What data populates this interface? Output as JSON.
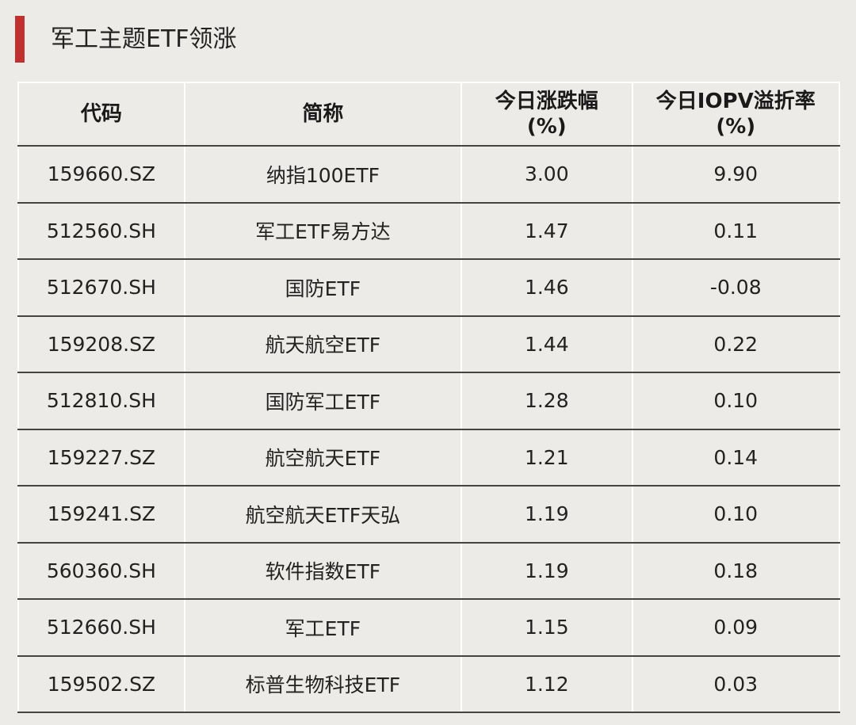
{
  "title": "军工主题ETF领涨",
  "accent_color": "#c0302f",
  "table": {
    "headers": [
      "代码",
      "简称",
      "今日涨跌幅\n(%)",
      "今日IOPV溢折率\n(%)"
    ],
    "header_lines": [
      [
        "代码"
      ],
      [
        "简称"
      ],
      [
        "今日涨跌幅",
        "(%)"
      ],
      [
        "今日IOPV溢折率",
        "(%)"
      ]
    ],
    "rows": [
      [
        "159660.SZ",
        "纳指100ETF",
        "3.00",
        "9.90"
      ],
      [
        "512560.SH",
        "军工ETF易方达",
        "1.47",
        "0.11"
      ],
      [
        "512670.SH",
        "国防ETF",
        "1.46",
        "-0.08"
      ],
      [
        "159208.SZ",
        "航天航空ETF",
        "1.44",
        "0.22"
      ],
      [
        "512810.SH",
        "国防军工ETF",
        "1.28",
        "0.10"
      ],
      [
        "159227.SZ",
        "航空航天ETF",
        "1.21",
        "0.14"
      ],
      [
        "159241.SZ",
        "航空航天ETF天弘",
        "1.19",
        "0.10"
      ],
      [
        "560360.SH",
        "软件指数ETF",
        "1.19",
        "0.18"
      ],
      [
        "512660.SH",
        "军工ETF",
        "1.15",
        "0.09"
      ],
      [
        "159502.SZ",
        "标普生物科技ETF",
        "1.12",
        "0.03"
      ]
    ]
  }
}
